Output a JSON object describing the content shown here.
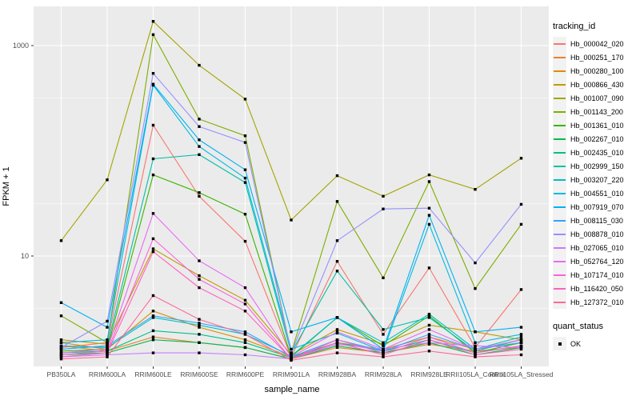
{
  "chart_data": {
    "type": "line",
    "title": "",
    "xlabel": "sample_name",
    "ylabel": "FPKM + 1",
    "x_categories": [
      "PB350LA",
      "RRIM600LA",
      "RRIM600LE",
      "RRIM600SE",
      "RRIM600PE",
      "RRIM901LA",
      "RRIM928BA",
      "RRIM928LA",
      "RRIM928LE",
      "RRII105LA_Control",
      "RRII105LA_Stressed"
    ],
    "y_scale": "log10",
    "y_major_ticks": [
      10,
      1000
    ],
    "y_minor_ticks": [
      3.162,
      31.62,
      316.2
    ],
    "ylim": [
      0.9,
      2000
    ],
    "grid": true,
    "legend_position": "right",
    "legend_title": "tracking_id",
    "marker": "black-square",
    "series": [
      {
        "name": "Hb_000042_020",
        "color": "#F8766D",
        "values": [
          1.35,
          1.5,
          175,
          37,
          13.8,
          1.1,
          8.9,
          1.8,
          7.7,
          1.35,
          4.8
        ]
      },
      {
        "name": "Hb_000251_170",
        "color": "#EA8331",
        "values": [
          1.4,
          1.25,
          1.7,
          1.5,
          1.35,
          1.05,
          1.35,
          1.2,
          1.45,
          1.25,
          1.35
        ]
      },
      {
        "name": "Hb_000280_100",
        "color": "#D89000",
        "values": [
          1.5,
          1.3,
          3.0,
          2.1,
          1.6,
          1.1,
          1.5,
          1.3,
          1.7,
          1.3,
          1.5
        ]
      },
      {
        "name": "Hb_000866_430",
        "color": "#C09B00",
        "values": [
          1.6,
          1.45,
          11.7,
          6.5,
          3.8,
          1.15,
          2.0,
          1.45,
          2.2,
          1.9,
          1.6
        ]
      },
      {
        "name": "Hb_001007_090",
        "color": "#A3A500",
        "values": [
          14,
          53,
          1700,
          650,
          310,
          22,
          58,
          37,
          59,
          43,
          85
        ]
      },
      {
        "name": "Hb_001143_200",
        "color": "#7CAE00",
        "values": [
          2.7,
          1.5,
          1270,
          200,
          139,
          1.2,
          33,
          6.2,
          51,
          4.9,
          20
        ]
      },
      {
        "name": "Hb_001361_010",
        "color": "#39B600",
        "values": [
          1.25,
          1.3,
          59,
          40,
          25,
          1.1,
          2.6,
          1.4,
          2.7,
          1.2,
          1.5
        ]
      },
      {
        "name": "Hb_002267_010",
        "color": "#00BB4E",
        "values": [
          1.15,
          1.2,
          1.6,
          1.5,
          1.35,
          1.05,
          1.4,
          1.2,
          1.5,
          1.15,
          1.35
        ]
      },
      {
        "name": "Hb_002435_010",
        "color": "#00C087",
        "values": [
          1.2,
          1.25,
          1.95,
          1.8,
          1.5,
          1.08,
          1.5,
          1.25,
          1.6,
          1.2,
          1.4
        ]
      },
      {
        "name": "Hb_002999_150",
        "color": "#00C1A9",
        "values": [
          1.3,
          1.4,
          84,
          92,
          50,
          1.2,
          7.2,
          2.0,
          2.6,
          1.25,
          1.6
        ]
      },
      {
        "name": "Hb_003207_220",
        "color": "#00BFC4",
        "values": [
          1.4,
          1.35,
          2.6,
          2.2,
          1.8,
          1.12,
          2.6,
          1.5,
          2.8,
          1.3,
          1.7
        ]
      },
      {
        "name": "Hb_004551_010",
        "color": "#00BAE0",
        "values": [
          1.5,
          1.6,
          420,
          110,
          55,
          1.3,
          1.85,
          1.25,
          20,
          1.5,
          1.8
        ]
      },
      {
        "name": "Hb_007919_070",
        "color": "#00B0F6",
        "values": [
          3.6,
          2.1,
          430,
          127,
          66,
          1.9,
          2.6,
          1.3,
          24.4,
          1.9,
          2.1
        ]
      },
      {
        "name": "Hb_008115_030",
        "color": "#35A2FF",
        "values": [
          1.3,
          1.4,
          2.7,
          2.3,
          1.9,
          1.1,
          1.6,
          1.25,
          1.8,
          1.3,
          1.5
        ]
      },
      {
        "name": "Hb_008878_010",
        "color": "#9590FF",
        "values": [
          1.35,
          2.4,
          545,
          170,
          120,
          1.2,
          14,
          28,
          28.5,
          8.6,
          31
        ]
      },
      {
        "name": "Hb_027065_010",
        "color": "#C77CFF",
        "values": [
          1.1,
          1.15,
          1.2,
          1.2,
          1.15,
          1.05,
          1.45,
          1.3,
          1.5,
          1.4,
          1.35
        ]
      },
      {
        "name": "Hb_052764_120",
        "color": "#E76BF3",
        "values": [
          1.2,
          1.3,
          25.4,
          9,
          5,
          1.1,
          1.9,
          1.3,
          2.0,
          1.3,
          1.6
        ]
      },
      {
        "name": "Hb_107174_010",
        "color": "#FA62DB",
        "values": [
          1.15,
          1.25,
          14.6,
          6,
          3.5,
          1.05,
          1.6,
          1.2,
          1.7,
          1.2,
          1.4
        ]
      },
      {
        "name": "Hb_116420_050",
        "color": "#FF62BC",
        "values": [
          1.1,
          1.2,
          11,
          5,
          3,
          1.05,
          1.5,
          1.15,
          1.6,
          1.15,
          1.3
        ]
      },
      {
        "name": "Hb_127372_010",
        "color": "#FF6A98",
        "values": [
          1.05,
          1.1,
          4.2,
          2.5,
          1.8,
          1.02,
          1.2,
          1.1,
          1.25,
          1.1,
          1.15
        ]
      }
    ],
    "legend2": {
      "title": "quant_status",
      "items": [
        {
          "label": "OK",
          "marker": "black-square"
        }
      ]
    }
  },
  "style": {
    "panel_bg": "#EBEBEB",
    "grid_color": "#FFFFFF",
    "tick_label_color": "#4D4D4D",
    "point_color": "#000000",
    "legend_key_bg": "#F2F2F2"
  }
}
